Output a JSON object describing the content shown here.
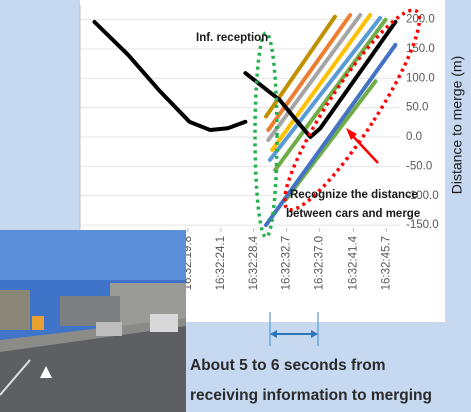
{
  "chart_data": {
    "type": "line",
    "ylabel": "Distance to merge (m)",
    "xlim": [
      5.7,
      47.5
    ],
    "ylim": [
      -155,
      225
    ],
    "xticks": [
      {
        "value": 19.8,
        "label": "16:32:19.8"
      },
      {
        "value": 24.1,
        "label": "16:32:24.1"
      },
      {
        "value": 28.4,
        "label": "16:32:28.4"
      },
      {
        "value": 32.7,
        "label": "16:32:32.7"
      },
      {
        "value": 37.0,
        "label": "16:32:37.0"
      },
      {
        "value": 41.4,
        "label": "16:32:41.4"
      },
      {
        "value": 45.7,
        "label": "16:32:45.7"
      }
    ],
    "yticks": [
      {
        "value": 200,
        "label": "200.0"
      },
      {
        "value": 150,
        "label": "150.0"
      },
      {
        "value": 100,
        "label": "100.0"
      },
      {
        "value": 50,
        "label": "50.0"
      },
      {
        "value": 0,
        "label": "0.0"
      },
      {
        "value": -50,
        "label": "-50.0"
      },
      {
        "value": -100,
        "label": "-100.0"
      },
      {
        "value": -150,
        "label": "-150.0"
      }
    ],
    "grid": true,
    "series": [
      {
        "color": "#bf9000",
        "x": [
          30.0,
          39.0
        ],
        "values": [
          35,
          205
        ]
      },
      {
        "color": "#ed7d31",
        "x": [
          30.3,
          41.0
        ],
        "values": [
          12,
          208
        ]
      },
      {
        "color": "#a5a5a5",
        "x": [
          30.3,
          42.3
        ],
        "values": [
          -5,
          208
        ]
      },
      {
        "color": "#ffc000",
        "x": [
          30.8,
          43.6
        ],
        "values": [
          -22,
          208
        ]
      },
      {
        "color": "#5b9bd5",
        "x": [
          30.5,
          44.9
        ],
        "values": [
          -39,
          203
        ]
      },
      {
        "color": "#70ad47",
        "x": [
          31.2,
          45.6
        ],
        "values": [
          -56,
          200
        ]
      },
      {
        "color": "#70ad47",
        "x": [
          32.5,
          44.3
        ],
        "values": [
          -108,
          95
        ]
      },
      {
        "color": "#4472c4",
        "x": [
          30.0,
          46.9
        ],
        "values": [
          -150,
          157
        ]
      },
      {
        "color": "#000000",
        "x": [
          7.6,
          12,
          16,
          20,
          22.7,
          25,
          27.3
        ],
        "values": [
          196,
          140,
          80,
          26,
          12,
          15,
          26
        ]
      },
      {
        "color": "#000000",
        "x": [
          27.3,
          31.8,
          34.5,
          35.8,
          37.1,
          46.9
        ],
        "values": [
          109,
          63,
          20,
          0,
          15,
          196
        ]
      }
    ],
    "annotations": [
      "Inf. reception",
      "Recognize the distance",
      "between cars and merge"
    ]
  },
  "caption": [
    "About 5 to 6 seconds from",
    "receiving information to merging"
  ]
}
